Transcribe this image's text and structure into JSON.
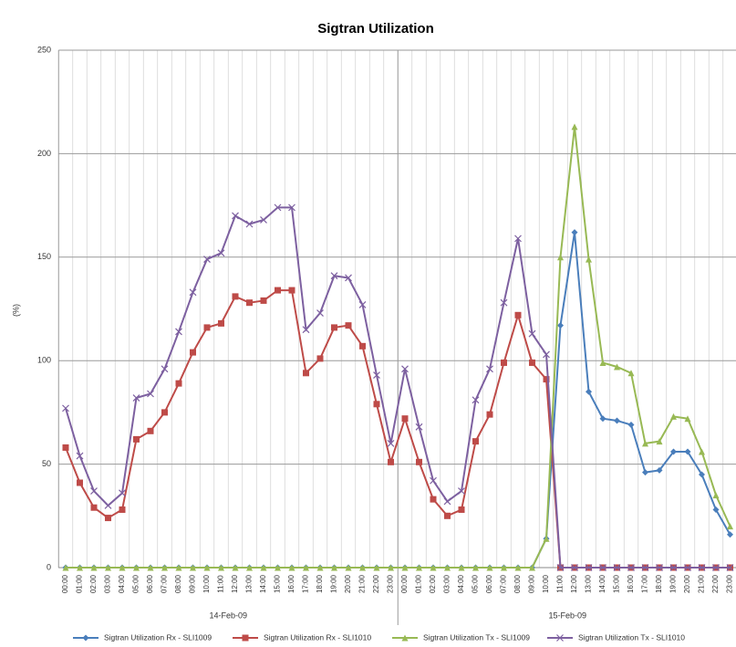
{
  "chart_data": {
    "type": "line",
    "title": "Sigtran Utilization",
    "y_label": "(%)",
    "categories": [
      "00:00",
      "01:00",
      "02:00",
      "03:00",
      "04:00",
      "05:00",
      "06:00",
      "07:00",
      "08:00",
      "09:00",
      "10:00",
      "11:00",
      "12:00",
      "13:00",
      "14:00",
      "15:00",
      "16:00",
      "17:00",
      "18:00",
      "19:00",
      "20:00",
      "21:00",
      "22:00",
      "23:00",
      "00:00",
      "01:00",
      "02:00",
      "03:00",
      "04:00",
      "05:00",
      "06:00",
      "07:00",
      "08:00",
      "09:00",
      "10:00",
      "11:00",
      "12:00",
      "13:00",
      "14:00",
      "15:00",
      "16:00",
      "17:00",
      "18:00",
      "19:00",
      "20:00",
      "21:00",
      "22:00",
      "23:00"
    ],
    "groups": [
      "14-Feb-09",
      "15-Feb-09"
    ],
    "series": [
      {
        "name": "Sigtran Utilization Rx - SLI1009",
        "color": "#4a7ebb",
        "marker": "diamond",
        "values": [
          0,
          0,
          0,
          0,
          0,
          0,
          0,
          0,
          0,
          0,
          0,
          0,
          0,
          0,
          0,
          0,
          0,
          0,
          0,
          0,
          0,
          0,
          0,
          0,
          0,
          0,
          0,
          0,
          0,
          0,
          0,
          0,
          0,
          0,
          14,
          117,
          162,
          85,
          72,
          71,
          69,
          46,
          47,
          56,
          56,
          45,
          28,
          16
        ]
      },
      {
        "name": "Sigtran Utilization Rx - SLI1010",
        "color": "#be4b48",
        "marker": "square",
        "values": [
          58,
          41,
          29,
          24,
          28,
          62,
          66,
          75,
          89,
          104,
          116,
          118,
          131,
          128,
          129,
          134,
          134,
          94,
          101,
          116,
          117,
          107,
          79,
          51,
          72,
          51,
          33,
          25,
          28,
          61,
          74,
          99,
          122,
          99,
          91,
          0,
          0,
          0,
          0,
          0,
          0,
          0,
          0,
          0,
          0,
          0,
          0,
          0
        ]
      },
      {
        "name": "Sigtran Utilization Tx - SLI1009",
        "color": "#98b954",
        "marker": "triangle",
        "values": [
          0,
          0,
          0,
          0,
          0,
          0,
          0,
          0,
          0,
          0,
          0,
          0,
          0,
          0,
          0,
          0,
          0,
          0,
          0,
          0,
          0,
          0,
          0,
          0,
          0,
          0,
          0,
          0,
          0,
          0,
          0,
          0,
          0,
          0,
          14,
          150,
          213,
          149,
          99,
          97,
          94,
          60,
          61,
          73,
          72,
          56,
          35,
          20
        ]
      },
      {
        "name": "Sigtran Utilization Tx - SLI1010",
        "color": "#7d60a0",
        "marker": "cross",
        "values": [
          77,
          54,
          37,
          30,
          36,
          82,
          84,
          96,
          114,
          133,
          149,
          152,
          170,
          166,
          168,
          174,
          174,
          115,
          123,
          141,
          140,
          127,
          93,
          60,
          96,
          68,
          42,
          32,
          37,
          81,
          96,
          128,
          159,
          113,
          103,
          0,
          0,
          0,
          0,
          0,
          0,
          0,
          0,
          0,
          0,
          0,
          0,
          0
        ]
      }
    ],
    "ylim": [
      0,
      250
    ],
    "yticks": [
      0,
      50,
      100,
      150,
      200,
      250
    ],
    "grid": true,
    "legend": "bottom"
  }
}
